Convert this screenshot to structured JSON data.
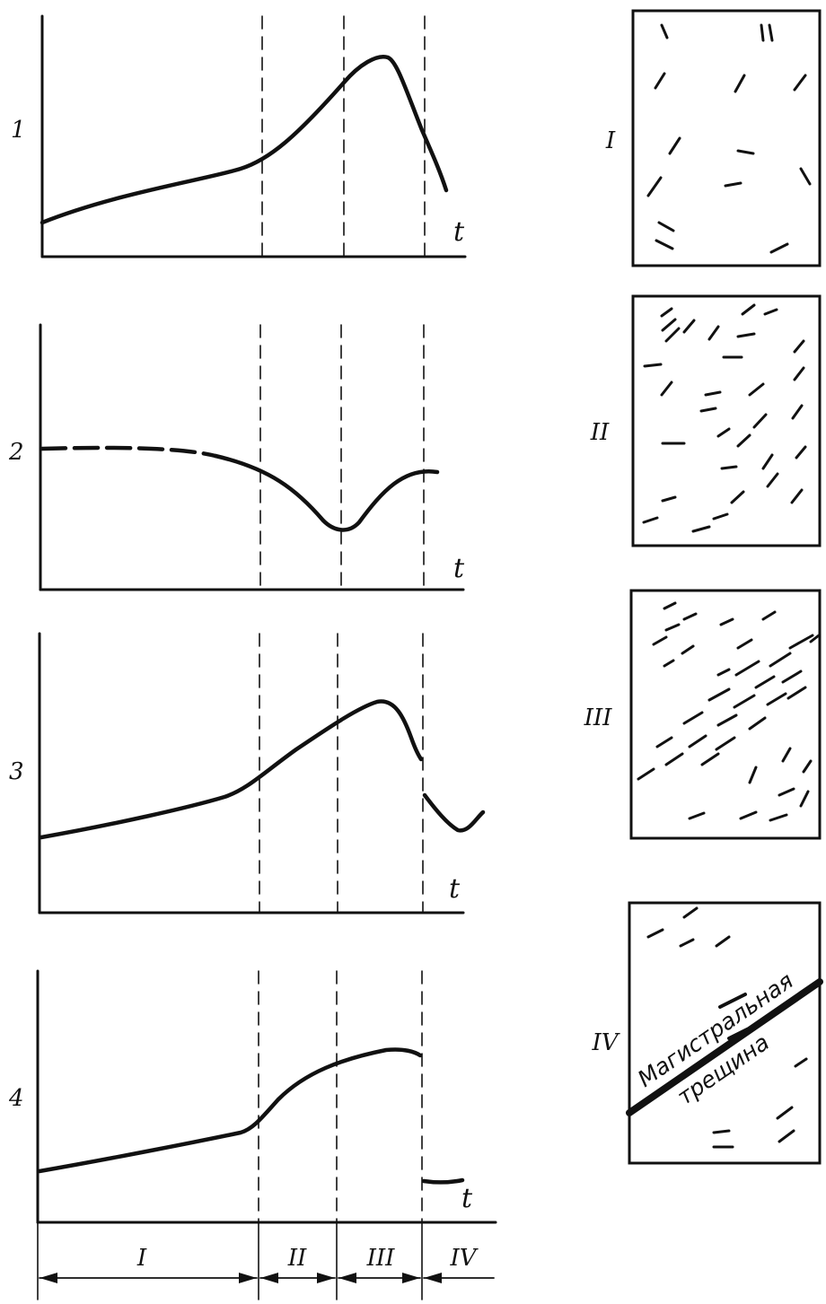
{
  "graphs": [
    {
      "number": "1",
      "axis_label": "t"
    },
    {
      "number": "2",
      "axis_label": "t"
    },
    {
      "number": "3",
      "axis_label": "t"
    },
    {
      "number": "4",
      "axis_label": "t"
    }
  ],
  "stages": [
    {
      "label": "I"
    },
    {
      "label": "II"
    },
    {
      "label": "III"
    },
    {
      "label": "IV"
    }
  ],
  "panels": [
    {
      "label": "I"
    },
    {
      "label": "II"
    },
    {
      "label": "III"
    },
    {
      "label": "IV"
    }
  ],
  "main_crack": {
    "line1": "Магистральная",
    "line2": "трещина"
  }
}
